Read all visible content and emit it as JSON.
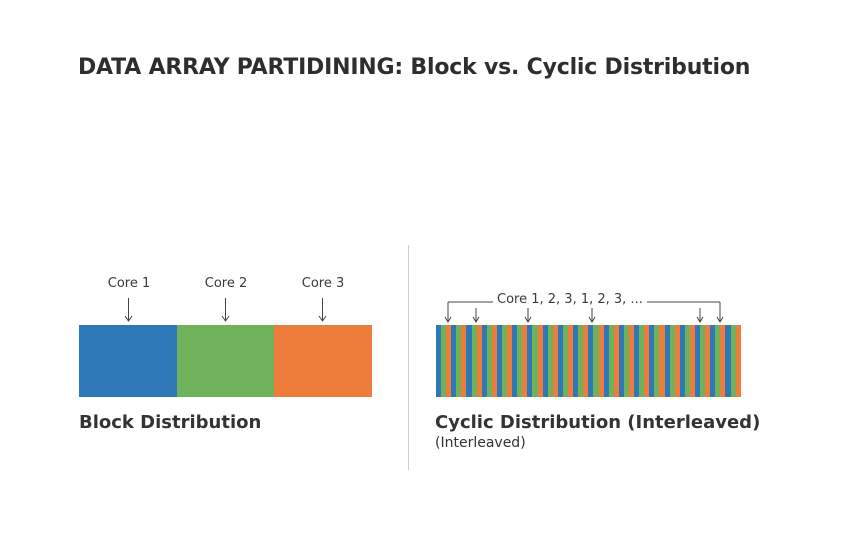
{
  "title": "DATA ARRAY PARTIDINING: Block vs. Cyclic Distribution",
  "colors": {
    "core1": "#2e78b7",
    "core2": "#6fb25b",
    "core3": "#ee7c3a"
  },
  "block": {
    "cores": [
      "Core 1",
      "Core 2",
      "Core 3"
    ],
    "label": "Block Distribution"
  },
  "cyclic": {
    "sequence_label": "Core 1, 2, 3, 1, 2, 3, ...",
    "label": "Cyclic Distribution (Interleaved)",
    "sublabel": "(Interleaved)",
    "stripe_count": 60
  }
}
